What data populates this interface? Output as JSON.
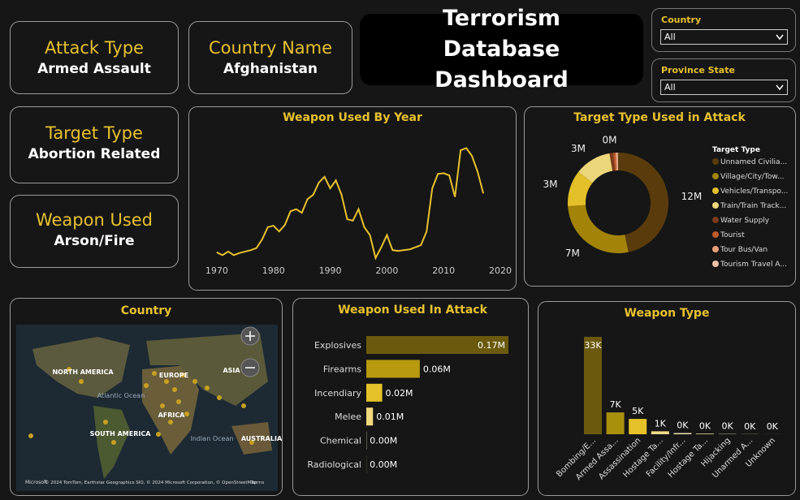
{
  "header": {
    "title": "Terrorism Database Dashboard"
  },
  "slicers": [
    {
      "label": "Country",
      "value": "All"
    },
    {
      "label": "Province State",
      "value": "All"
    }
  ],
  "cards": [
    {
      "label": "Attack Type",
      "value": "Armed Assault"
    },
    {
      "label": "Country Name",
      "value": "Afghanistan"
    },
    {
      "label": "Target Type",
      "value": "Abortion Related"
    },
    {
      "label": "Weapon Used",
      "value": "Arson/Fire"
    }
  ],
  "map": {
    "title": "Country",
    "labels": [
      "NORTH AMERICA",
      "EUROPE",
      "ASIA",
      "Atlantic Ocean",
      "AFRICA",
      "SOUTH AMERICA",
      "Indian Ocean",
      "AUSTRALIA"
    ],
    "logo": "Microsoft",
    "attribution": "© 2024 TomTom, Earthstar Geographics SIO, © 2024 Microsoft Corporation, © OpenStreetMap",
    "terms": "Terms"
  },
  "chart_data": [
    {
      "type": "line",
      "title": "Weapon Used By Year",
      "color": "#e8c22e",
      "x": [
        1970,
        1971,
        1972,
        1973,
        1974,
        1975,
        1976,
        1977,
        1978,
        1979,
        1980,
        1981,
        1982,
        1983,
        1984,
        1985,
        1986,
        1987,
        1988,
        1989,
        1990,
        1991,
        1992,
        1993,
        1994,
        1995,
        1996,
        1997,
        1998,
        1999,
        2000,
        2001,
        2002,
        2003,
        2004,
        2005,
        2006,
        2007,
        2008,
        2009,
        2010,
        2011,
        2012,
        2013,
        2014,
        2015,
        2016,
        2017
      ],
      "values": [
        1600,
        1200,
        1700,
        1200,
        1500,
        1700,
        1900,
        2200,
        3400,
        5100,
        5300,
        4500,
        5400,
        7300,
        7600,
        7100,
        9000,
        9600,
        11300,
        12100,
        10500,
        11600,
        9600,
        6200,
        6000,
        7600,
        5100,
        4000,
        800,
        2300,
        4000,
        1900,
        1800,
        1900,
        2000,
        2300,
        2600,
        4500,
        10500,
        12500,
        12600,
        12300,
        9300,
        15800,
        16100,
        15000,
        12800,
        9800
      ],
      "xlim": [
        1966,
        2021
      ],
      "xticks": [
        1970,
        1980,
        1990,
        2000,
        2010,
        2020
      ],
      "ylim": [
        0,
        17500
      ]
    },
    {
      "type": "pie",
      "title": "Target Type Used in Attack",
      "legend_title": "Target Type",
      "legend": "right",
      "categories": [
        "Unnamed Civilia...",
        "Village/City/Tow...",
        "Vehicles/Transpo...",
        "Train/Train Track...",
        "Water Supply",
        "Tourist",
        "Tour Bus/Van",
        "Tourism Travel A..."
      ],
      "values": [
        12000000,
        7000000,
        3000000,
        3000000,
        300000,
        200000,
        150000,
        50000
      ],
      "value_labels": [
        "12M",
        "7M",
        "3M",
        "3M",
        "0M",
        null,
        null,
        null
      ],
      "colors": [
        "#5a3c0c",
        "#a38408",
        "#e3bf2a",
        "#ecd67a",
        "#7a3b1c",
        "#c05a2a",
        "#e8a07a",
        "#f3c1a8"
      ]
    },
    {
      "type": "hbar",
      "title": "Weapon Used In Attack",
      "categories": [
        "Explosives",
        "Firearms",
        "Incendiary",
        "Melee",
        "Chemical",
        "Radiological"
      ],
      "values": [
        170000,
        64000,
        19000,
        8000,
        300,
        100
      ],
      "value_labels": [
        "0.17M",
        "0.06M",
        "0.02M",
        "0.01M",
        "0.00M",
        "0.00M"
      ],
      "colors": [
        "#6b5a0e",
        "#b89a10",
        "#e6c229",
        "#f0d97a",
        "#f5e9b8",
        "#f5e9b8"
      ],
      "xlim": [
        0,
        170000
      ]
    },
    {
      "type": "bar",
      "title": "Weapon Type",
      "categories": [
        "Bombing/E...",
        "Armed Assa...",
        "Assassination",
        "Hostage Ta...",
        "Facility/Infr...",
        "Hostage Ta...",
        "Hijacking",
        "Unarmed A...",
        "Unknown"
      ],
      "values": [
        33000,
        7400,
        5200,
        1000,
        400,
        200,
        100,
        50,
        10
      ],
      "value_labels": [
        "33K",
        "7K",
        "5K",
        "1K",
        "0K",
        "0K",
        "0K",
        "0K",
        "0K"
      ],
      "colors": [
        "#6b5a0e",
        "#a8900c",
        "#e6c229",
        "#f0dc8a",
        "#f5e9b8",
        "#f5e9b8",
        "#f5e9b8",
        "#f5e9b8",
        "#f5e9b8"
      ],
      "ylim": [
        0,
        33000
      ]
    }
  ]
}
